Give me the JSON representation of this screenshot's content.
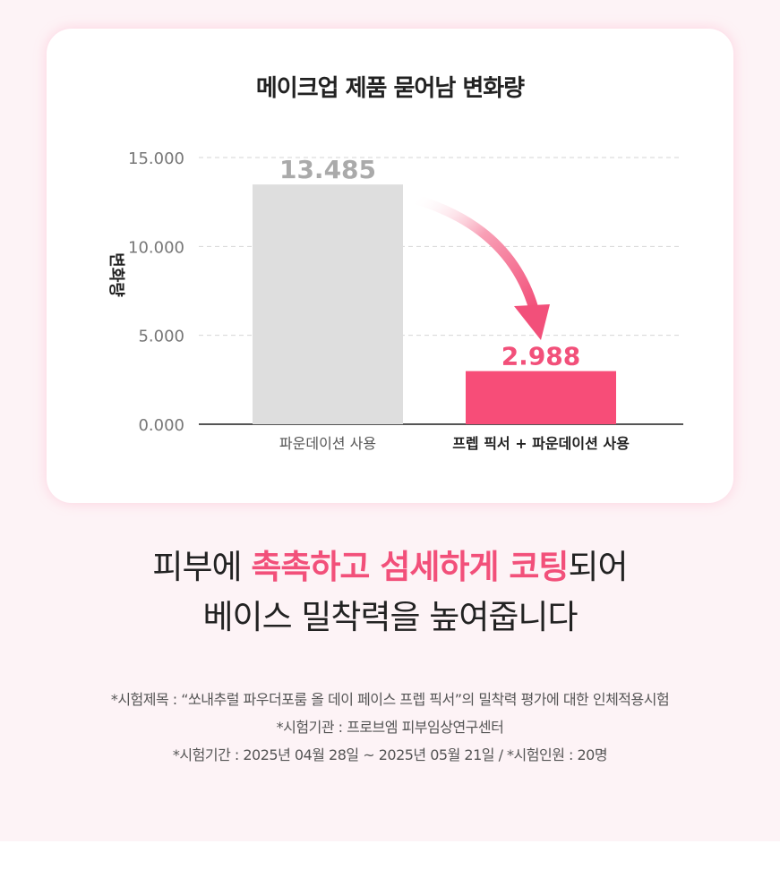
{
  "chart_data": {
    "type": "bar",
    "title": "메이크업 제품 묻어남 변화량",
    "ylabel": "변화량",
    "xlabel": "",
    "ylim": [
      0,
      15
    ],
    "yticks": [
      "0.000",
      "5.000",
      "10.000",
      "15.000"
    ],
    "ytick_values": [
      0,
      5,
      10,
      15
    ],
    "categories": [
      "파운데이션 사용",
      "프렙 픽서 + 파운데이션 사용"
    ],
    "values": [
      13.485,
      2.988
    ],
    "value_labels": [
      "13.485",
      "2.988"
    ],
    "colors": [
      "#dedede",
      "#f74d78"
    ],
    "value_label_colors": [
      "#aaaaaa",
      "#f2507a"
    ],
    "grid": true,
    "annotation": "arrow from first bar to second bar"
  },
  "headline": {
    "line1_part1": "피부에 ",
    "line1_accent": "촉촉하고 섬세하게 코팅",
    "line1_part2": "되어",
    "line2": "베이스 밀착력을 높여줍니다"
  },
  "footnotes": [
    "*시험제목 : “쏘내추럴 파우더포룸 올 데이 페이스 프렙 픽서”의 밀착력 평가에 대한 인체적용시험",
    "*시험기관 : 프로브엠 피부임상연구센터",
    "*시험기간 : 2025년 04월 28일 ~ 2025년 05월 21일 / *시험인원 : 20명"
  ],
  "colors": {
    "accent": "#f2507a",
    "background": "#fdf3f6"
  }
}
